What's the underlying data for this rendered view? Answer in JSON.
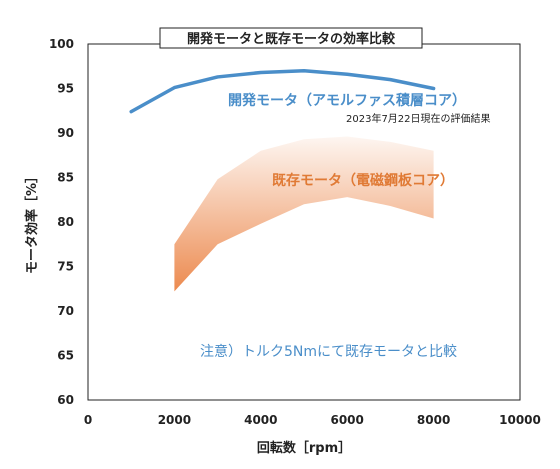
{
  "chart_data": {
    "type": "line",
    "title": "開発モータと既存モータの効率比較",
    "xlabel": "回転数［rpm］",
    "ylabel": "モータ効率［%］",
    "xlim": [
      0,
      10000
    ],
    "ylim": [
      60,
      100
    ],
    "x_ticks": [
      0,
      2000,
      4000,
      6000,
      8000,
      10000
    ],
    "y_ticks": [
      60,
      65,
      70,
      75,
      80,
      85,
      90,
      95,
      100
    ],
    "grid": false,
    "series": [
      {
        "name": "開発モータ（アモルファス積層コア）",
        "kind": "line",
        "color": "#4a8ec9",
        "x": [
          1000,
          2000,
          3000,
          4000,
          5000,
          6000,
          7000,
          8000
        ],
        "y": [
          92.4,
          95.1,
          96.3,
          96.8,
          97.0,
          96.6,
          96.0,
          95.0
        ]
      },
      {
        "name": "既存モータ（電磁鋼板コア）",
        "kind": "band",
        "color": "#ec8a4f",
        "x": [
          2000,
          3000,
          4000,
          5000,
          6000,
          7000,
          8000
        ],
        "upper": [
          77.5,
          84.8,
          88.0,
          89.3,
          89.6,
          89.0,
          88.0
        ],
        "lower": [
          72.2,
          77.5,
          79.8,
          82.0,
          82.8,
          81.8,
          80.4
        ]
      }
    ],
    "annotations": {
      "dev_date_note": "2023年7月22日現在の評価結果",
      "note": "注意）トルク5Nmにて既存モータと比較"
    }
  }
}
